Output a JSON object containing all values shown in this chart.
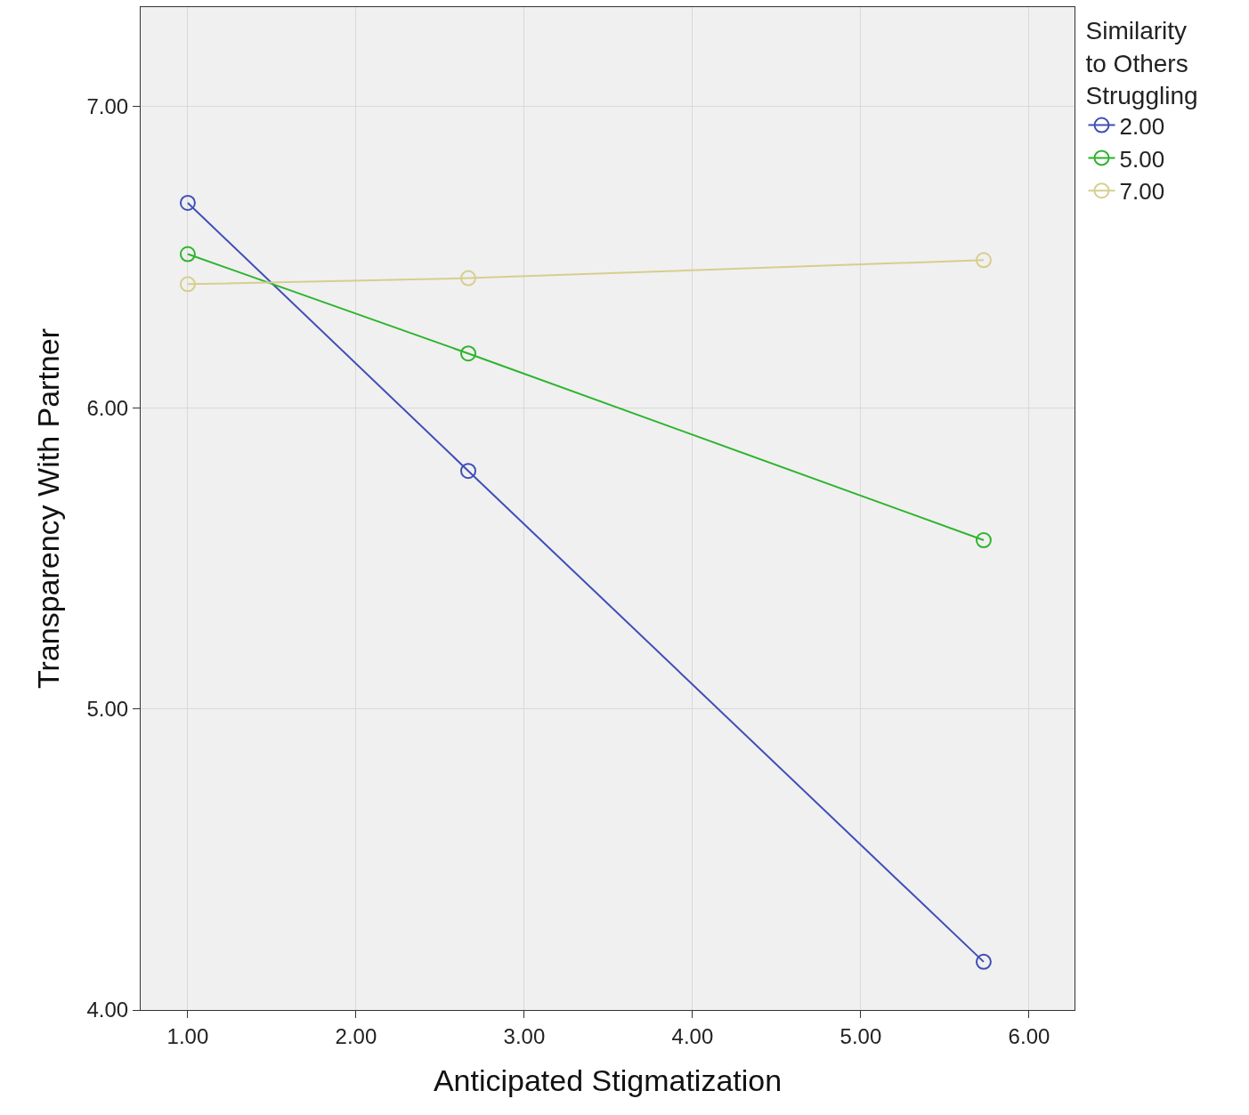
{
  "chart_data": {
    "type": "line",
    "xlabel": "Anticipated Stigmatization",
    "ylabel": "Transparency With Partner",
    "legend_title": "Similarity\nto Others\nStruggling",
    "x": [
      1.0,
      2.667,
      5.73
    ],
    "series": [
      {
        "name": "2.00",
        "color": "#3f4fb8",
        "values": [
          6.68,
          5.79,
          4.16
        ]
      },
      {
        "name": "5.00",
        "color": "#2db42d",
        "values": [
          6.51,
          6.18,
          5.56
        ]
      },
      {
        "name": "7.00",
        "color": "#d6ce8e",
        "values": [
          6.41,
          6.43,
          6.49
        ]
      }
    ],
    "xlim": [
      0.72,
      6.27
    ],
    "xticks": [
      {
        "value": 1,
        "label": "1.00"
      },
      {
        "value": 2,
        "label": "2.00"
      },
      {
        "value": 3,
        "label": "3.00"
      },
      {
        "value": 4,
        "label": "4.00"
      },
      {
        "value": 5,
        "label": "5.00"
      },
      {
        "value": 6,
        "label": "6.00"
      }
    ],
    "ylim": [
      4.0,
      7.33
    ],
    "yticks": [
      {
        "value": 4,
        "label": "4.00"
      },
      {
        "value": 5,
        "label": "5.00"
      },
      {
        "value": 6,
        "label": "6.00"
      },
      {
        "value": 7,
        "label": "7.00"
      }
    ],
    "grid": true,
    "legend": "top right",
    "marker": "circle",
    "line_style": "solid"
  }
}
